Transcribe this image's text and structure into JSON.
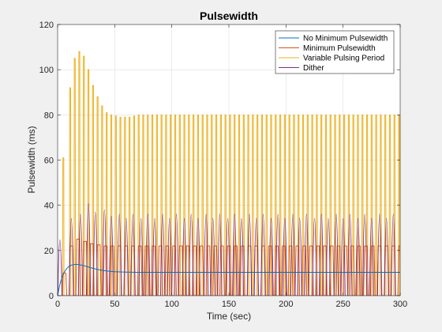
{
  "chart_data": {
    "type": "line",
    "title": "Pulsewidth",
    "xlabel": "Time (sec)",
    "ylabel": "Pulsewidth (ms)",
    "xlim": [
      0,
      300
    ],
    "ylim": [
      0,
      120
    ],
    "xticks": [
      0,
      50,
      100,
      150,
      200,
      250,
      300
    ],
    "yticks": [
      0,
      20,
      40,
      60,
      80,
      100,
      120
    ],
    "grid": true,
    "legend_position": "top-right",
    "series": [
      {
        "name": "No Minimum Pulsewidth",
        "color": "#0072BD",
        "kind": "smooth",
        "x": [
          0,
          2,
          4,
          6,
          8,
          10,
          12,
          15,
          18,
          22,
          26,
          30,
          35,
          40,
          45,
          50,
          60,
          70,
          80,
          100,
          150,
          200,
          250,
          300
        ],
        "y": [
          0,
          5,
          8.5,
          10.5,
          12,
          13,
          13.5,
          13.8,
          13.8,
          13.4,
          12.8,
          12.2,
          11.6,
          11.1,
          10.8,
          10.6,
          10.4,
          10.3,
          10.3,
          10.3,
          10.3,
          10.3,
          10.3,
          10.3
        ]
      },
      {
        "name": "Minimum Pulsewidth",
        "color": "#D95319",
        "kind": "pulses",
        "period": 6,
        "start": 4,
        "width": 4,
        "peaks": [
          10,
          22,
          25,
          24,
          23,
          22.5,
          22,
          22,
          22,
          22,
          22,
          22,
          22,
          22,
          22,
          22,
          22,
          22,
          22,
          22,
          22,
          22,
          22,
          22,
          22,
          22,
          22,
          22,
          22,
          22,
          22,
          22,
          22,
          22,
          22,
          22,
          22,
          22,
          22,
          22,
          22,
          22,
          22,
          22,
          22,
          22,
          22,
          22,
          22,
          22
        ]
      },
      {
        "name": "Variable Pulsing Period",
        "color": "#EDB120",
        "kind": "spikes",
        "x": [
          5,
          11,
          15,
          19,
          23,
          27,
          31,
          35,
          39,
          43,
          47,
          51,
          55,
          59,
          63,
          67,
          71,
          75,
          79,
          83,
          87,
          91,
          95,
          99,
          103,
          107,
          111,
          115,
          119,
          123,
          127,
          131,
          135,
          139,
          143,
          147,
          151,
          155,
          159,
          163,
          167,
          171,
          175,
          179,
          183,
          187,
          191,
          195,
          199,
          203,
          207,
          211,
          215,
          219,
          223,
          227,
          231,
          235,
          239,
          243,
          247,
          251,
          255,
          259,
          263,
          267,
          271,
          275,
          279,
          283,
          287,
          291,
          295,
          299
        ],
        "y": [
          61,
          92,
          105,
          108,
          106,
          100,
          93,
          88,
          84,
          81,
          80,
          79.5,
          79,
          79,
          79,
          79.5,
          80,
          80,
          80,
          80,
          80,
          80,
          80,
          80,
          80,
          80,
          80,
          80,
          80,
          80,
          80,
          80,
          80,
          80,
          80,
          80,
          80,
          80,
          80,
          80,
          80,
          80,
          80,
          80,
          80,
          80,
          80,
          80,
          80,
          80,
          80,
          80,
          80,
          80,
          80,
          80,
          80,
          80,
          80,
          80,
          80,
          80,
          80,
          80,
          80,
          80,
          80,
          80,
          80,
          80,
          80,
          80,
          80,
          80
        ]
      },
      {
        "name": "Dither",
        "color": "#7E2F8E",
        "kind": "humps",
        "x": [
          2,
          12,
          20,
          27,
          33,
          41,
          47,
          54,
          60,
          66,
          73,
          79,
          85,
          92,
          98,
          104,
          111,
          117,
          123,
          130,
          136,
          142,
          149,
          155,
          161,
          168,
          174,
          180,
          187,
          193,
          199,
          206,
          212,
          218,
          225,
          231,
          237,
          244,
          250,
          256,
          263,
          269,
          275,
          282,
          288,
          294
        ],
        "y": [
          26,
          36,
          38,
          43,
          39,
          40,
          37,
          38,
          36,
          38,
          36,
          38,
          36,
          38,
          36,
          38,
          36,
          38,
          36,
          38,
          36,
          38,
          36,
          38,
          36,
          38,
          36,
          38,
          36,
          38,
          36,
          38,
          36,
          38,
          36,
          38,
          36,
          38,
          36,
          38,
          36,
          38,
          36,
          38,
          36,
          38
        ]
      }
    ]
  }
}
